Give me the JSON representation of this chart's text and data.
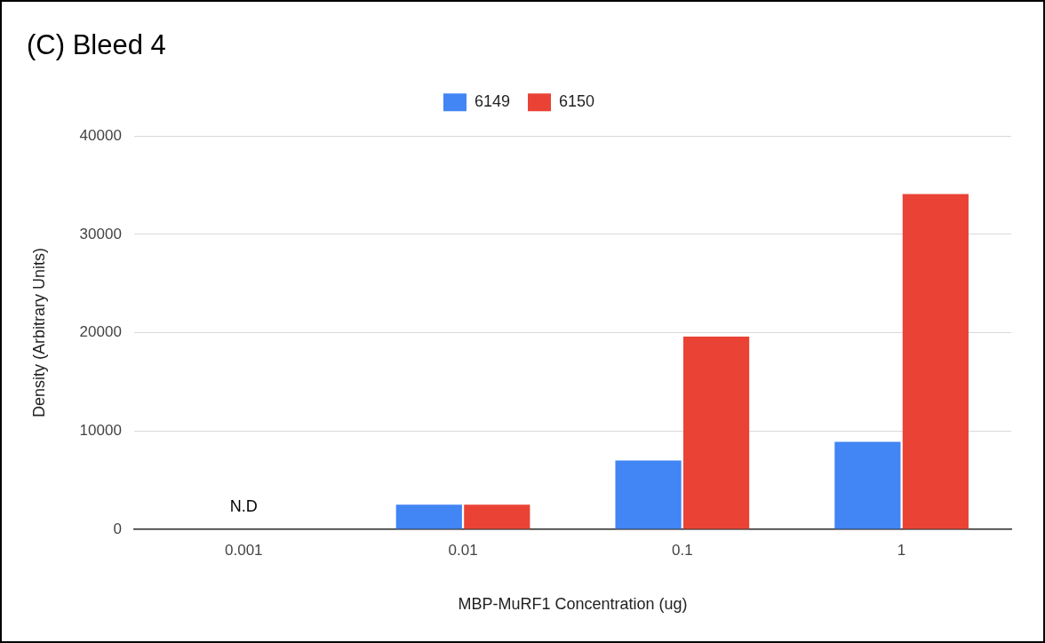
{
  "chart_data": {
    "type": "bar",
    "title": "(C) Bleed 4",
    "xlabel": "MBP-MuRF1 Concentration (ug)",
    "ylabel": "Density (Arbitrary Units)",
    "categories": [
      "0.001",
      "0.01",
      "0.1",
      "1"
    ],
    "series": [
      {
        "name": "6149",
        "color": "#4285f4",
        "values": [
          null,
          2500,
          7000,
          8900
        ]
      },
      {
        "name": "6150",
        "color": "#ea4335",
        "values": [
          null,
          2500,
          19600,
          34100
        ]
      }
    ],
    "ylim": [
      0,
      40000
    ],
    "yticks": [
      0,
      10000,
      20000,
      30000,
      40000
    ],
    "grid": "y",
    "legend": "top",
    "annotations": [
      "N.D"
    ]
  }
}
